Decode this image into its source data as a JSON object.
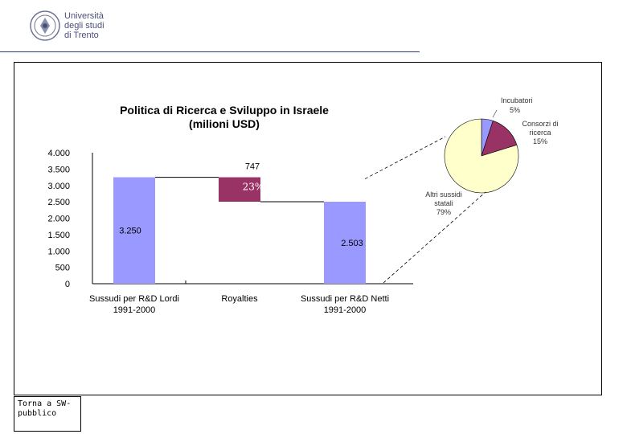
{
  "header": {
    "logo_lines": [
      "Università",
      "degli studi",
      "di Trento"
    ]
  },
  "back_link": "Torna a SW-pubblico",
  "chart_data": [
    {
      "type": "bar",
      "subtype": "waterfall",
      "title": "Politica di Ricerca e Sviluppo in Israele (milioni USD)",
      "categories": [
        "Sussudi per R&D Lordi\n1991-2000",
        "Royalties",
        "Sussudi per R&D Netti\n1991-2000"
      ],
      "values": [
        3250,
        -747,
        2503
      ],
      "data_labels": [
        "3.250",
        "747",
        "2.503"
      ],
      "royalties_share_label": "23%",
      "ylim": [
        0,
        4000
      ],
      "yticks": [
        {
          "value": 0,
          "label": "0"
        },
        {
          "value": 500,
          "label": "500"
        },
        {
          "value": 1000,
          "label": "1.000"
        },
        {
          "value": 1500,
          "label": "1.500"
        },
        {
          "value": 2000,
          "label": "2.000"
        },
        {
          "value": 2500,
          "label": "2.500"
        },
        {
          "value": 3000,
          "label": "3.000"
        },
        {
          "value": 3500,
          "label": "3.500"
        },
        {
          "value": 4000,
          "label": "4.000"
        }
      ],
      "colors": {
        "bar": "#9999ff",
        "royalties": "#993366"
      }
    },
    {
      "type": "pie",
      "slices": [
        {
          "name": "Incubatori",
          "label": "5%",
          "value": 5,
          "color": "#9999ff"
        },
        {
          "name": "Consorzi di ricerca",
          "label": "15%",
          "value": 15,
          "color": "#993366"
        },
        {
          "name": "Altri sussidi statali",
          "label": "79%",
          "value": 79,
          "color": "#ffffcc"
        }
      ]
    }
  ]
}
